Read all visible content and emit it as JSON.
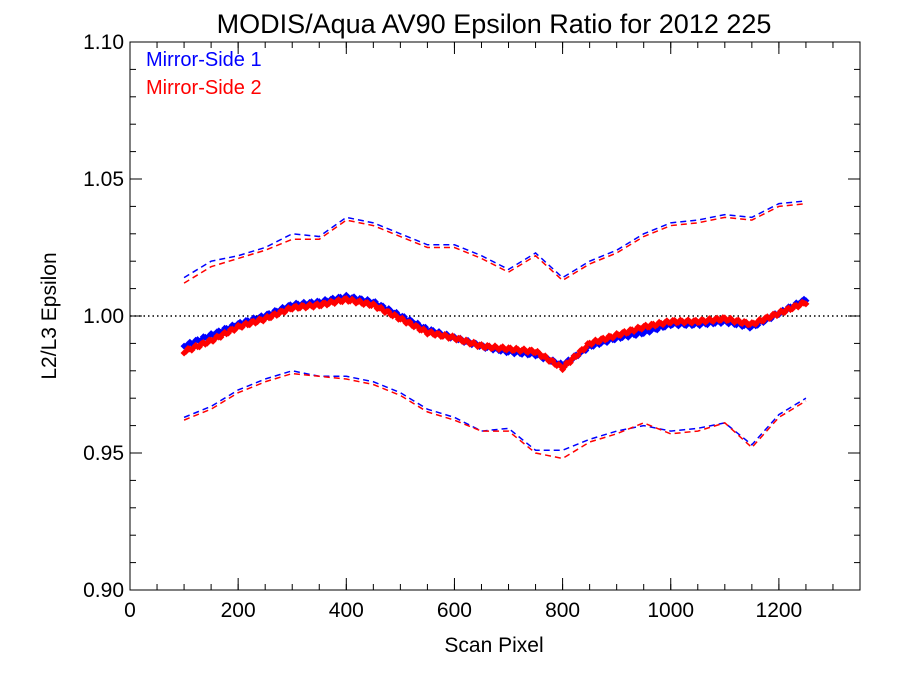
{
  "chart_data": {
    "type": "line",
    "title": "MODIS/Aqua AV90 Epsilon Ratio for 2012 225",
    "xlabel": "Scan Pixel",
    "ylabel": "L2/L3 Epsilon",
    "xlim": [
      0,
      1350
    ],
    "ylim": [
      0.9,
      1.1
    ],
    "x_ticks": [
      0,
      200,
      400,
      600,
      800,
      1000,
      1200
    ],
    "x_tick_labels": [
      "0",
      "200",
      "400",
      "600",
      "800",
      "1000",
      "1200"
    ],
    "y_ticks": [
      0.9,
      0.95,
      1.0,
      1.05,
      1.1
    ],
    "y_tick_labels": [
      "0.90",
      "0.95",
      "1.00",
      "1.05",
      "1.10"
    ],
    "x_minor_step": 50,
    "y_minor_step": 0.01,
    "reference_line": {
      "y": 1.0,
      "style": "dotted"
    },
    "legend": {
      "placement": "top-left",
      "entries": [
        {
          "name": "Mirror-Side 1",
          "color": "#0000ff"
        },
        {
          "name": "Mirror-Side 2",
          "color": "#ff0000"
        }
      ]
    },
    "x": [
      100,
      150,
      200,
      250,
      300,
      350,
      400,
      450,
      500,
      550,
      600,
      650,
      700,
      750,
      800,
      850,
      900,
      950,
      1000,
      1050,
      1100,
      1150,
      1200,
      1250
    ],
    "series": [
      {
        "name": "Mirror-Side 1",
        "color": "#0000ff",
        "style": "markers",
        "values": [
          0.989,
          0.993,
          0.997,
          1.0,
          1.004,
          1.005,
          1.007,
          1.005,
          1.0,
          0.995,
          0.992,
          0.989,
          0.987,
          0.986,
          0.982,
          0.989,
          0.992,
          0.994,
          0.997,
          0.997,
          0.998,
          0.996,
          1.001,
          1.006
        ]
      },
      {
        "name": "Mirror-Side 2",
        "color": "#ff0000",
        "style": "markers",
        "values": [
          0.987,
          0.991,
          0.996,
          0.999,
          1.003,
          1.004,
          1.006,
          1.004,
          0.999,
          0.994,
          0.992,
          0.989,
          0.988,
          0.987,
          0.981,
          0.99,
          0.993,
          0.996,
          0.998,
          0.998,
          0.999,
          0.997,
          1.001,
          1.005
        ]
      },
      {
        "name": "Mirror-Side 1 upper",
        "color": "#0000ff",
        "style": "dashed",
        "values": [
          1.014,
          1.02,
          1.022,
          1.025,
          1.03,
          1.029,
          1.036,
          1.034,
          1.03,
          1.026,
          1.026,
          1.022,
          1.017,
          1.023,
          1.014,
          1.02,
          1.024,
          1.03,
          1.034,
          1.035,
          1.037,
          1.036,
          1.041,
          1.042
        ]
      },
      {
        "name": "Mirror-Side 2 upper",
        "color": "#ff0000",
        "style": "dashed",
        "values": [
          1.012,
          1.018,
          1.021,
          1.024,
          1.028,
          1.028,
          1.035,
          1.033,
          1.029,
          1.025,
          1.025,
          1.021,
          1.016,
          1.022,
          1.013,
          1.019,
          1.023,
          1.029,
          1.033,
          1.034,
          1.036,
          1.035,
          1.04,
          1.041
        ]
      },
      {
        "name": "Mirror-Side 1 lower",
        "color": "#0000ff",
        "style": "dashed",
        "values": [
          0.963,
          0.967,
          0.973,
          0.977,
          0.98,
          0.978,
          0.978,
          0.976,
          0.972,
          0.966,
          0.963,
          0.958,
          0.959,
          0.951,
          0.951,
          0.955,
          0.958,
          0.96,
          0.958,
          0.959,
          0.961,
          0.953,
          0.964,
          0.97
        ]
      },
      {
        "name": "Mirror-Side 2 lower",
        "color": "#ff0000",
        "style": "dashed",
        "values": [
          0.962,
          0.966,
          0.972,
          0.976,
          0.979,
          0.978,
          0.977,
          0.975,
          0.971,
          0.965,
          0.962,
          0.958,
          0.958,
          0.95,
          0.948,
          0.954,
          0.957,
          0.961,
          0.957,
          0.958,
          0.961,
          0.952,
          0.963,
          0.969
        ]
      }
    ]
  }
}
